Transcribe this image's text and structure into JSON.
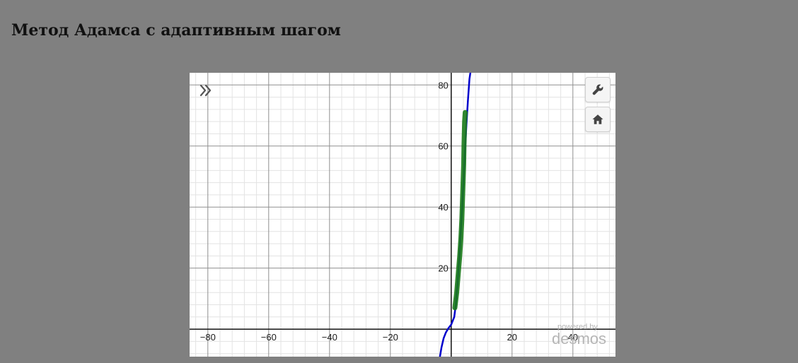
{
  "page": {
    "title": "Метод Адамса с адаптивным шагом"
  },
  "calculator": {
    "icons": {
      "expand": "double-chevron-right-icon",
      "settings": "wrench-icon",
      "home": "home-icon"
    },
    "watermark": {
      "line1": "powered by",
      "line2": "desmos"
    }
  },
  "chart_data": {
    "type": "line",
    "xlim": [
      -86,
      54
    ],
    "ylim": [
      -9,
      84
    ],
    "grid": true,
    "x_ticks": [
      -80,
      -60,
      -40,
      -20,
      20,
      40
    ],
    "y_ticks": [
      20,
      40,
      60,
      80
    ],
    "series": [
      {
        "color": "#0000cc",
        "x": [
          -3.7,
          -3.2,
          -2.5,
          -1.8,
          -1.0,
          0.0,
          1.0,
          1.5,
          2.0,
          2.5,
          3.0,
          3.5,
          4.0,
          4.5,
          5.0,
          5.5,
          6.0,
          6.3
        ],
        "y": [
          -9,
          -6,
          -3,
          -1.2,
          0.2,
          1.5,
          4,
          8,
          14,
          21,
          29,
          38,
          48,
          58,
          67,
          75,
          82,
          84
        ]
      },
      {
        "color": "#1a7a1a",
        "x": [
          1.2,
          1.8,
          2.3,
          2.8,
          3.2,
          3.5,
          3.7,
          3.9,
          4.1,
          4.2,
          4.3,
          4.4,
          4.6
        ],
        "y": [
          7,
          12,
          18,
          24,
          30,
          36,
          42,
          48,
          54,
          60,
          64,
          68,
          71
        ]
      }
    ]
  }
}
